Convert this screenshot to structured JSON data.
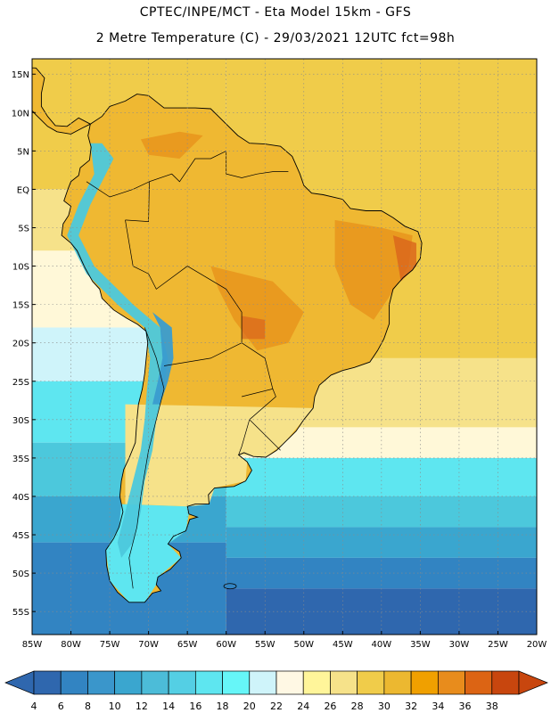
{
  "header": {
    "title_line1": "CPTEC/INPE/MCT -  Eta Model 15km - GFS",
    "title_line2": "2 Metre Temperature (C) - 29/03/2021 12UTC fct=98h"
  },
  "map": {
    "lat_labels": [
      "15N",
      "10N",
      "5N",
      "EQ",
      "5S",
      "10S",
      "15S",
      "20S",
      "25S",
      "30S",
      "35S",
      "40S",
      "45S",
      "50S",
      "55S"
    ],
    "lon_labels": [
      "85W",
      "80W",
      "75W",
      "70W",
      "65W",
      "60W",
      "55W",
      "50W",
      "45W",
      "40W",
      "35W",
      "30W",
      "25W",
      "20W"
    ],
    "lon_range": [
      -85,
      -20
    ],
    "lat_range": [
      -58,
      17
    ],
    "ocean_bands": [
      {
        "lat_top": 17,
        "lat_bottom": -22,
        "color": "#f0cc4a"
      },
      {
        "lat_top": -22,
        "lat_bottom": -31,
        "color": "#f6e28a"
      },
      {
        "lat_top": -31,
        "lat_bottom": -35,
        "color": "#fff8d8"
      },
      {
        "lat_top": -35,
        "lat_bottom": -40,
        "color": "#5ee6f0"
      },
      {
        "lat_top": -40,
        "lat_bottom": -44,
        "color": "#4cc8dc"
      },
      {
        "lat_top": -44,
        "lat_bottom": -48,
        "color": "#3aa6cf"
      },
      {
        "lat_top": -48,
        "lat_bottom": -52,
        "color": "#3284c2"
      },
      {
        "lat_top": -52,
        "lat_bottom": -58,
        "color": "#2f67ae"
      }
    ],
    "pacific_bands": [
      {
        "lat_top": 17,
        "lat_bottom": 0,
        "color": "#f0cc4a"
      },
      {
        "lat_top": 0,
        "lat_bottom": -8,
        "color": "#f6e28a"
      },
      {
        "lat_top": -8,
        "lat_bottom": -18,
        "color": "#fff8d8"
      },
      {
        "lat_top": -18,
        "lat_bottom": -25,
        "color": "#cff4fa"
      },
      {
        "lat_top": -25,
        "lat_bottom": -33,
        "color": "#5ee6f0"
      },
      {
        "lat_top": -33,
        "lat_bottom": -40,
        "color": "#4cc8dc"
      },
      {
        "lat_top": -40,
        "lat_bottom": -46,
        "color": "#3aa6cf"
      },
      {
        "lat_top": -46,
        "lat_bottom": -58,
        "color": "#3284c2"
      }
    ],
    "land_color": "#efb832",
    "hot_color": "#e8941c",
    "very_hot_color": "#d9641c",
    "andes_color": "#4cc8dc",
    "andes_deep_color": "#3a9ccf",
    "south_land_color": "#f6e28a"
  },
  "colorbar": {
    "labels": [
      "4",
      "6",
      "8",
      "10",
      "12",
      "14",
      "16",
      "18",
      "20",
      "22",
      "24",
      "26",
      "28",
      "30",
      "32",
      "34",
      "36",
      "38"
    ],
    "colors": [
      "#2f67ae",
      "#3284c2",
      "#3a96cb",
      "#3aa6cf",
      "#4cbcd8",
      "#54cfe4",
      "#5ee6f0",
      "#66f6f8",
      "#cff4fa",
      "#fff8e4",
      "#fff59a",
      "#f6e28a",
      "#f0cc4a",
      "#ecb830",
      "#f0a000",
      "#e88c1c",
      "#dc6414",
      "#c8460e"
    ],
    "left_arrow_color": "#2f67ae",
    "right_arrow_color": "#c8460e"
  }
}
